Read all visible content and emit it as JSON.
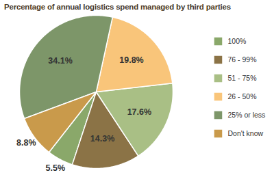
{
  "chart_data": {
    "type": "pie",
    "title": "Percentage of annual logistics spend managed by third parties",
    "categories": [
      "100%",
      "76 - 99%",
      "51 - 75%",
      "26 - 50%",
      "25% or less",
      "Don't know"
    ],
    "values": [
      5.5,
      14.3,
      17.6,
      19.8,
      34.1,
      8.8
    ],
    "value_labels": [
      "5.5%",
      "14.3%",
      "17.6%",
      "19.8%",
      "34.1%",
      "8.8%"
    ],
    "colors": [
      "#8aa86a",
      "#8b7346",
      "#a9bf85",
      "#f9c57a",
      "#7d9669",
      "#c99a4b"
    ],
    "data_labels": true,
    "legend": "right"
  }
}
